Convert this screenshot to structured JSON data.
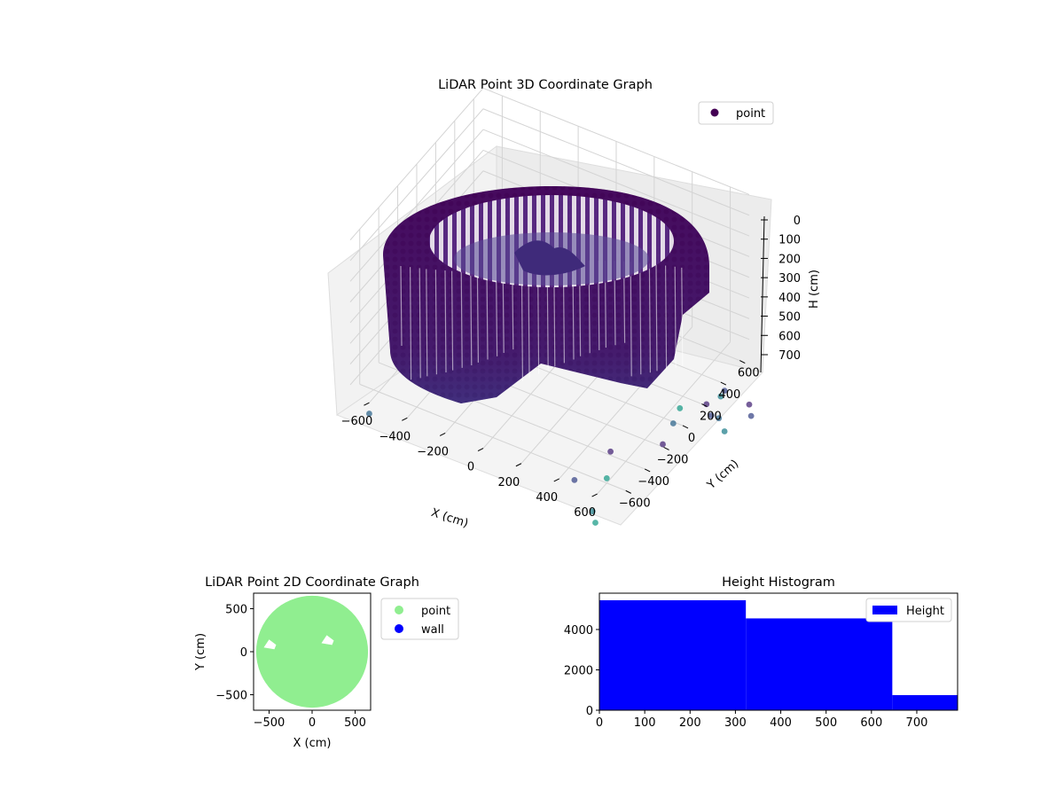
{
  "chart_data": [
    {
      "type": "scatter",
      "projection": "3d",
      "title": "LiDAR Point 3D Coordinate Graph",
      "xlabel": "X (cm)",
      "ylabel": "Y (cm)",
      "zlabel": "H (cm)",
      "xlim": [
        -700,
        700
      ],
      "ylim": [
        -700,
        700
      ],
      "zlim": [
        750,
        0
      ],
      "zaxis_inverted": true,
      "x_ticks": [
        -600,
        -400,
        -200,
        0,
        200,
        400,
        600
      ],
      "y_ticks": [
        -600,
        -400,
        -200,
        0,
        200,
        400,
        600
      ],
      "z_ticks": [
        0,
        100,
        200,
        300,
        400,
        500,
        600,
        700
      ],
      "grid": true,
      "legend": {
        "placement": "upper-right",
        "entries": [
          {
            "name": "point",
            "color": "#440154"
          }
        ]
      },
      "colormap": "viridis",
      "shape": {
        "description_values": "cylindrical wall of points around the origin with a rectangular extension toward +X,-Y",
        "outer_radius": 650,
        "inner_radius": 490,
        "height_range": [
          0,
          750
        ],
        "extension_x": [
          250,
          650
        ],
        "extension_y": [
          -600,
          100
        ]
      },
      "outliers": [
        {
          "x": 650,
          "y": 350,
          "h": 720
        },
        {
          "x": 700,
          "y": 300,
          "h": 730
        },
        {
          "x": 760,
          "y": 260,
          "h": 700
        },
        {
          "x": 820,
          "y": 200,
          "h": 710
        },
        {
          "x": 500,
          "y": -400,
          "h": 740
        },
        {
          "x": 420,
          "y": -200,
          "h": 745
        },
        {
          "x": 380,
          "y": -500,
          "h": 740
        },
        {
          "x": 600,
          "y": 100,
          "h": 700
        },
        {
          "x": 700,
          "y": 400,
          "h": 690
        },
        {
          "x": 560,
          "y": 250,
          "h": 720
        },
        {
          "x": 620,
          "y": -50,
          "h": 715
        },
        {
          "x": 660,
          "y": 520,
          "h": 740
        },
        {
          "x": -650,
          "y": -600,
          "h": 745
        },
        {
          "x": 550,
          "y": -650,
          "h": 750
        },
        {
          "x": 600,
          "y": -720,
          "h": 750
        },
        {
          "x": 800,
          "y": 500,
          "h": 745
        },
        {
          "x": 850,
          "y": 420,
          "h": 740
        }
      ]
    },
    {
      "type": "scatter",
      "title": "LiDAR Point 2D Coordinate Graph",
      "xlabel": "X (cm)",
      "ylabel": "Y (cm)",
      "xlim": [
        -680,
        680
      ],
      "ylim": [
        -680,
        680
      ],
      "x_ticks": [
        -500,
        0,
        500
      ],
      "y_ticks": [
        -500,
        0,
        500
      ],
      "grid": false,
      "legend": {
        "placement": "outside-right",
        "entries": [
          {
            "name": "point",
            "color": "#90ee90"
          },
          {
            "name": "wall",
            "color": "#0000ff"
          }
        ]
      },
      "disc_radius": 650,
      "notches": [
        {
          "x": -500,
          "y": 80
        },
        {
          "x": 170,
          "y": 130
        }
      ]
    },
    {
      "type": "bar",
      "title": "Height Histogram",
      "xlabel": "",
      "ylabel": "",
      "xlim": [
        0,
        790
      ],
      "ylim": [
        0,
        5800
      ],
      "x_ticks": [
        0,
        100,
        200,
        300,
        400,
        500,
        600,
        700
      ],
      "y_ticks": [
        0,
        2000,
        4000
      ],
      "grid": false,
      "legend": {
        "placement": "upper-right",
        "entries": [
          {
            "name": "Height",
            "color": "#0000ff"
          }
        ]
      },
      "bins": [
        {
          "from": 0,
          "to": 323,
          "count": 5450
        },
        {
          "from": 323,
          "to": 646,
          "count": 4550
        },
        {
          "from": 646,
          "to": 790,
          "count": 750
        }
      ]
    }
  ]
}
